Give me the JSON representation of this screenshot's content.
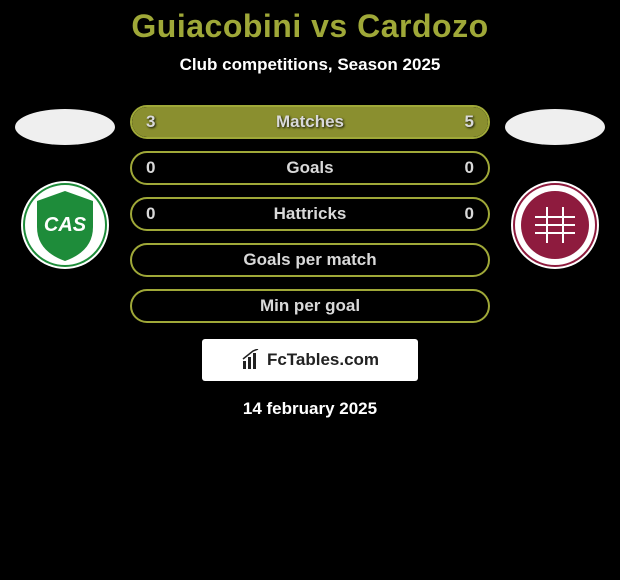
{
  "header": {
    "title": "Guiacobini vs Cardozo",
    "subtitle": "Club competitions, Season 2025",
    "title_color": "#9fa838",
    "subtitle_color": "#ffffff",
    "title_fontsize": 32,
    "subtitle_fontsize": 17
  },
  "background_color": "#000000",
  "left": {
    "player_oval_color": "#efefef",
    "crest_bg": "#ffffff",
    "crest_shield_color": "#1e8c3a",
    "crest_border_color": "#1e8c3a",
    "crest_text": "CAS"
  },
  "right": {
    "player_oval_color": "#efefef",
    "crest_bg": "#ffffff",
    "crest_shield_color": "#8e1b3e",
    "crest_border_color": "#8e1b3e",
    "crest_text": ""
  },
  "stats": {
    "border_color": "#9fa838",
    "fill_color": "#8a8f2f",
    "empty_color": "#000000",
    "label_color": "#d9d9d9",
    "value_color": "#d9d9d9",
    "rows": [
      {
        "label": "Matches",
        "left_val": "3",
        "right_val": "5",
        "left_pct": 37.5,
        "right_pct": 62.5
      },
      {
        "label": "Goals",
        "left_val": "0",
        "right_val": "0",
        "left_pct": 0,
        "right_pct": 0
      },
      {
        "label": "Hattricks",
        "left_val": "0",
        "right_val": "0",
        "left_pct": 0,
        "right_pct": 0
      },
      {
        "label": "Goals per match",
        "left_val": "",
        "right_val": "",
        "left_pct": 0,
        "right_pct": 0
      },
      {
        "label": "Min per goal",
        "left_val": "",
        "right_val": "",
        "left_pct": 0,
        "right_pct": 0
      }
    ]
  },
  "footer": {
    "brand_text": "FcTables.com",
    "background": "#ffffff",
    "text_color": "#222222",
    "date": "14 february 2025"
  }
}
